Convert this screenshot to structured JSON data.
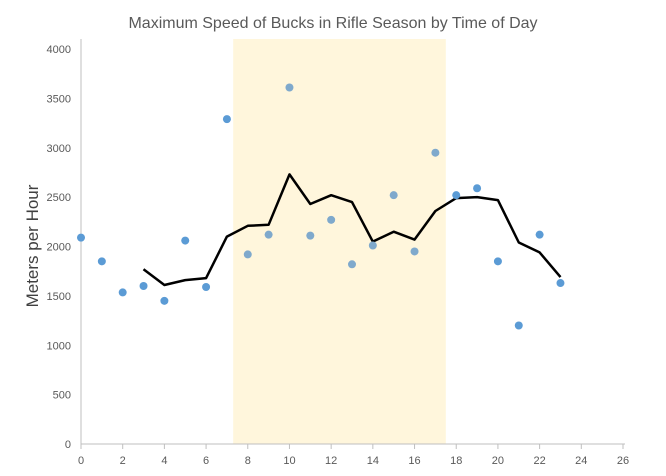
{
  "chart_data": {
    "type": "scatter",
    "title": "Maximum Speed of Bucks in Rifle Season by Time of Day",
    "xlabel": "",
    "ylabel": "Meters per Hour",
    "xlim": [
      0,
      26
    ],
    "ylim": [
      0,
      4000
    ],
    "x_ticks": [
      0,
      2,
      4,
      6,
      8,
      10,
      12,
      14,
      16,
      18,
      20,
      22,
      24,
      26
    ],
    "y_ticks": [
      0,
      500,
      1000,
      1500,
      2000,
      2500,
      3000,
      3500,
      4000
    ],
    "highlight_band": {
      "x_start": 7.3,
      "x_end": 17.5,
      "color": "#fff6dc"
    },
    "grid": false,
    "legend": "none",
    "series": [
      {
        "type": "scatter",
        "color": "#5b9bd5",
        "points": [
          {
            "x": 0,
            "y": 2090
          },
          {
            "x": 1,
            "y": 1850
          },
          {
            "x": 2,
            "y": 1535
          },
          {
            "x": 3,
            "y": 1600
          },
          {
            "x": 4,
            "y": 1450
          },
          {
            "x": 5,
            "y": 2060
          },
          {
            "x": 6,
            "y": 1590
          },
          {
            "x": 7,
            "y": 3290
          },
          {
            "x": 8,
            "y": 1920
          },
          {
            "x": 9,
            "y": 2120
          },
          {
            "x": 10,
            "y": 3610
          },
          {
            "x": 11,
            "y": 2110
          },
          {
            "x": 12,
            "y": 2270
          },
          {
            "x": 13,
            "y": 1820
          },
          {
            "x": 14,
            "y": 2010
          },
          {
            "x": 15,
            "y": 2520
          },
          {
            "x": 16,
            "y": 1950
          },
          {
            "x": 17,
            "y": 2950
          },
          {
            "x": 18,
            "y": 2520
          },
          {
            "x": 19,
            "y": 2590
          },
          {
            "x": 20,
            "y": 1850
          },
          {
            "x": 21,
            "y": 1200
          },
          {
            "x": 22,
            "y": 2120
          },
          {
            "x": 23,
            "y": 1630
          }
        ]
      },
      {
        "type": "line",
        "color": "#000000",
        "points": [
          {
            "x": 3,
            "y": 1770
          },
          {
            "x": 4,
            "y": 1610
          },
          {
            "x": 5,
            "y": 1660
          },
          {
            "x": 6,
            "y": 1680
          },
          {
            "x": 7,
            "y": 2100
          },
          {
            "x": 8,
            "y": 2210
          },
          {
            "x": 9,
            "y": 2220
          },
          {
            "x": 10,
            "y": 2730
          },
          {
            "x": 11,
            "y": 2430
          },
          {
            "x": 12,
            "y": 2520
          },
          {
            "x": 13,
            "y": 2450
          },
          {
            "x": 14,
            "y": 2050
          },
          {
            "x": 15,
            "y": 2150
          },
          {
            "x": 16,
            "y": 2070
          },
          {
            "x": 17,
            "y": 2360
          },
          {
            "x": 18,
            "y": 2490
          },
          {
            "x": 19,
            "y": 2500
          },
          {
            "x": 20,
            "y": 2470
          },
          {
            "x": 21,
            "y": 2040
          },
          {
            "x": 22,
            "y": 1940
          },
          {
            "x": 23,
            "y": 1690
          }
        ]
      }
    ]
  }
}
